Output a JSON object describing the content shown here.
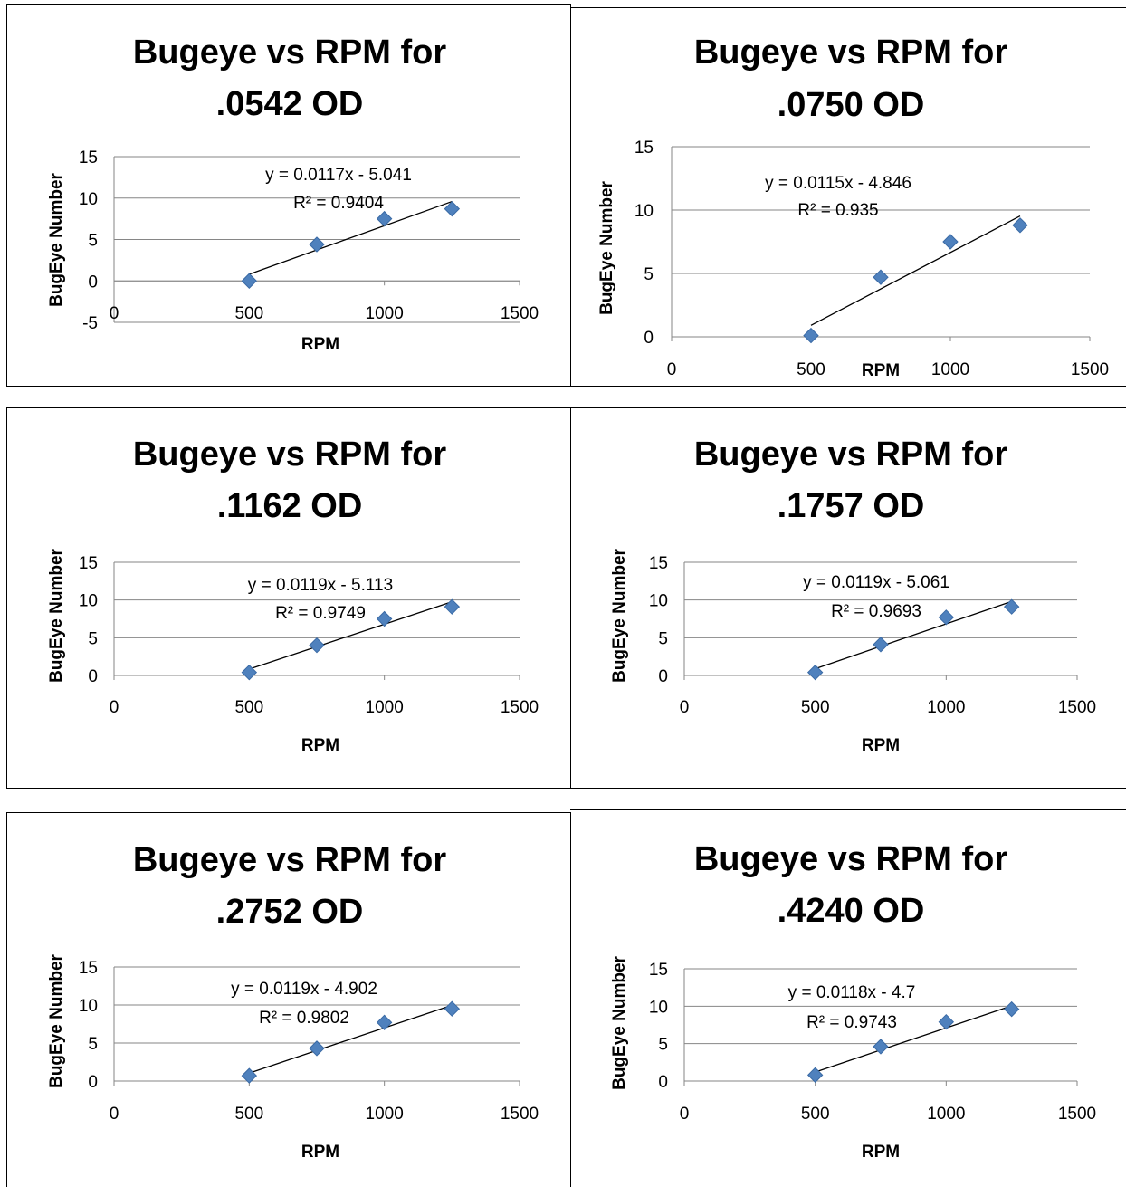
{
  "chart_data": [
    {
      "type": "scatter",
      "title_lines": [
        "Bugeye vs RPM for",
        ".0542 OD"
      ],
      "xlabel": "RPM",
      "ylabel": "BugEye Number",
      "xlim": [
        0,
        1500
      ],
      "ylim": [
        -5,
        15
      ],
      "xticks": [
        "0",
        "500",
        "1000",
        "1500"
      ],
      "yticks": [
        "-5",
        "0",
        "5",
        "10",
        "15"
      ],
      "points": [
        {
          "x": 500,
          "y": 0
        },
        {
          "x": 750,
          "y": 4.4
        },
        {
          "x": 1000,
          "y": 7.5
        },
        {
          "x": 1250,
          "y": 8.7
        }
      ],
      "trendline": {
        "equation": "y = 0.0117x - 5.041",
        "r2": "R² = 0.9404",
        "slope": 0.0117,
        "intercept": -5.041
      },
      "grid": true
    },
    {
      "type": "scatter",
      "title_lines": [
        "Bugeye vs RPM for",
        ".0750 OD"
      ],
      "xlabel": "RPM",
      "ylabel": "BugEye Number",
      "xlim": [
        0,
        1500
      ],
      "ylim": [
        0,
        15
      ],
      "xticks": [
        "0",
        "500",
        "1000",
        "1500"
      ],
      "yticks": [
        "0",
        "5",
        "10",
        "15"
      ],
      "points": [
        {
          "x": 500,
          "y": 0.1
        },
        {
          "x": 750,
          "y": 4.7
        },
        {
          "x": 1000,
          "y": 7.5
        },
        {
          "x": 1250,
          "y": 8.8
        }
      ],
      "trendline": {
        "equation": "y = 0.0115x - 4.846",
        "r2": "R² = 0.935",
        "slope": 0.0115,
        "intercept": -4.846
      },
      "grid": true
    },
    {
      "type": "scatter",
      "title_lines": [
        "Bugeye vs RPM for",
        ".1162 OD"
      ],
      "xlabel": "RPM",
      "ylabel": "BugEye Number",
      "xlim": [
        0,
        1500
      ],
      "ylim": [
        0,
        15
      ],
      "xticks": [
        "0",
        "500",
        "1000",
        "1500"
      ],
      "yticks": [
        "0",
        "5",
        "10",
        "15"
      ],
      "points": [
        {
          "x": 500,
          "y": 0.4
        },
        {
          "x": 750,
          "y": 4.0
        },
        {
          "x": 1000,
          "y": 7.5
        },
        {
          "x": 1250,
          "y": 9.1
        }
      ],
      "trendline": {
        "equation": "y = 0.0119x - 5.113",
        "r2": "R² = 0.9749",
        "slope": 0.0119,
        "intercept": -5.113
      },
      "grid": true
    },
    {
      "type": "scatter",
      "title_lines": [
        "Bugeye vs RPM for",
        ".1757 OD"
      ],
      "xlabel": "RPM",
      "ylabel": "BugEye Number",
      "xlim": [
        0,
        1500
      ],
      "ylim": [
        0,
        15
      ],
      "xticks": [
        "0",
        "500",
        "1000",
        "1500"
      ],
      "yticks": [
        "0",
        "5",
        "10",
        "15"
      ],
      "points": [
        {
          "x": 500,
          "y": 0.4
        },
        {
          "x": 750,
          "y": 4.1
        },
        {
          "x": 1000,
          "y": 7.7
        },
        {
          "x": 1250,
          "y": 9.1
        }
      ],
      "trendline": {
        "equation": "y = 0.0119x - 5.061",
        "r2": "R² = 0.9693",
        "slope": 0.0119,
        "intercept": -5.061
      },
      "grid": true
    },
    {
      "type": "scatter",
      "title_lines": [
        "Bugeye vs RPM for",
        ".2752 OD"
      ],
      "xlabel": "RPM",
      "ylabel": "BugEye Number",
      "xlim": [
        0,
        1500
      ],
      "ylim": [
        0,
        15
      ],
      "xticks": [
        "0",
        "500",
        "1000",
        "1500"
      ],
      "yticks": [
        "0",
        "5",
        "10",
        "15"
      ],
      "points": [
        {
          "x": 500,
          "y": 0.7
        },
        {
          "x": 750,
          "y": 4.3
        },
        {
          "x": 1000,
          "y": 7.7
        },
        {
          "x": 1250,
          "y": 9.5
        }
      ],
      "trendline": {
        "equation": "y = 0.0119x - 4.902",
        "r2": "R² = 0.9802",
        "slope": 0.0119,
        "intercept": -4.902
      },
      "grid": true
    },
    {
      "type": "scatter",
      "title_lines": [
        "Bugeye vs RPM for",
        ".4240 OD"
      ],
      "xlabel": "RPM",
      "ylabel": "BugEye Number",
      "xlim": [
        0,
        1500
      ],
      "ylim": [
        0,
        15
      ],
      "xticks": [
        "0",
        "500",
        "1000",
        "1500"
      ],
      "yticks": [
        "0",
        "5",
        "10",
        "15"
      ],
      "points": [
        {
          "x": 500,
          "y": 0.8
        },
        {
          "x": 750,
          "y": 4.6
        },
        {
          "x": 1000,
          "y": 7.9
        },
        {
          "x": 1250,
          "y": 9.6
        }
      ],
      "trendline": {
        "equation": "y = 0.0118x - 4.7",
        "r2": "R² = 0.9743",
        "slope": 0.0118,
        "intercept": -4.7
      },
      "grid": true
    }
  ],
  "colors": {
    "marker": "#4f81bd",
    "grid": "#868686",
    "frame": "#000000"
  }
}
